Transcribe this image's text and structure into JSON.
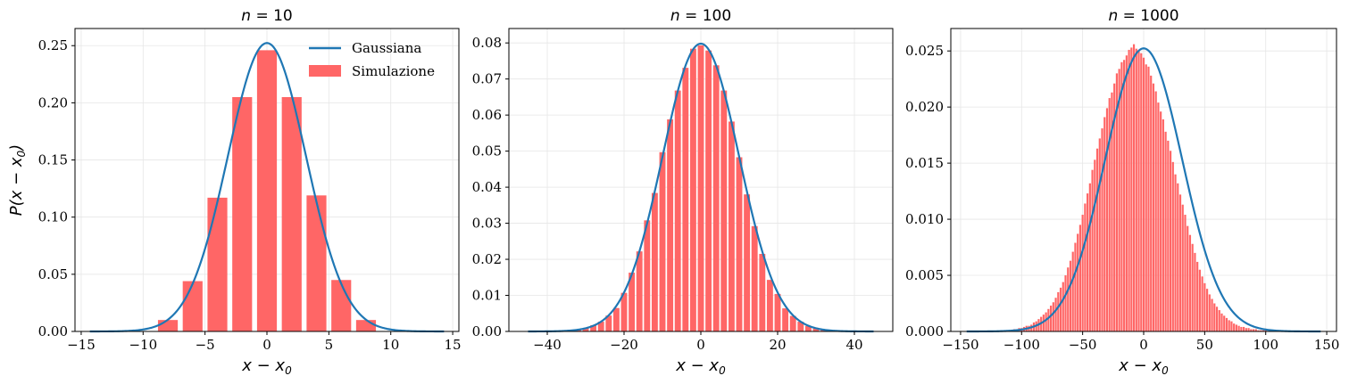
{
  "colors": {
    "bar": "#ff6666",
    "curve": "#1f77b4",
    "grid": "#e6e6e6",
    "axis": "#000000"
  },
  "chart_data": [
    {
      "type": "bar",
      "title": "n = 10",
      "title_parts": {
        "var": "n",
        "rest": " = 10"
      },
      "xlabel": "x − x",
      "xlabel_sub": "0",
      "ylabel": "P(x − x",
      "ylabel_sub": "0",
      "ylabel_close": ")",
      "xlim": [
        -15.5,
        15.5
      ],
      "ylim": [
        0,
        0.265
      ],
      "xticks": [
        -15,
        -10,
        -5,
        0,
        5,
        10,
        15
      ],
      "xtick_labels": [
        "−15",
        "−10",
        "−5",
        "0",
        "5",
        "10",
        "15"
      ],
      "yticks": [
        0,
        0.05,
        0.1,
        0.15,
        0.2,
        0.25
      ],
      "ytick_labels": [
        "0.00",
        "0.05",
        "0.10",
        "0.15",
        "0.20",
        "0.25"
      ],
      "grid": true,
      "bar_width": 1.6,
      "bars": {
        "x": [
          -8,
          -6,
          -4,
          -2,
          0,
          2,
          4,
          6,
          8
        ],
        "values": [
          0.01,
          0.044,
          0.117,
          0.205,
          0.246,
          0.205,
          0.119,
          0.045,
          0.01
        ]
      },
      "curve": {
        "sigma": 3.1623,
        "peak": 0.2523,
        "xmin": -14.3,
        "xmax": 14.3
      },
      "legend": {
        "position": "top-right",
        "items": [
          "Gaussiana",
          "Simulazione"
        ]
      }
    },
    {
      "type": "bar",
      "title": "n = 100",
      "title_parts": {
        "var": "n",
        "rest": " = 100"
      },
      "xlabel": "x − x",
      "xlabel_sub": "0",
      "xlim": [
        -50,
        50
      ],
      "ylim": [
        0,
        0.084
      ],
      "xticks": [
        -40,
        -20,
        0,
        20,
        40
      ],
      "xtick_labels": [
        "−40",
        "−20",
        "0",
        "20",
        "40"
      ],
      "yticks": [
        0,
        0.01,
        0.02,
        0.03,
        0.04,
        0.05,
        0.06,
        0.07,
        0.08
      ],
      "ytick_labels": [
        "0.00",
        "0.01",
        "0.02",
        "0.03",
        "0.04",
        "0.05",
        "0.06",
        "0.07",
        "0.08"
      ],
      "grid": true,
      "bar_width": 1.6,
      "bars": {
        "x": [
          -34,
          -32,
          -30,
          -28,
          -26,
          -24,
          -22,
          -20,
          -18,
          -16,
          -14,
          -12,
          -10,
          -8,
          -6,
          -4,
          -2,
          0,
          2,
          4,
          6,
          8,
          10,
          12,
          14,
          16,
          18,
          20,
          22,
          24,
          26,
          28,
          30,
          32,
          34
        ],
        "values": [
          0.0002,
          0.0004,
          0.0009,
          0.0017,
          0.0027,
          0.0044,
          0.0065,
          0.0107,
          0.0163,
          0.0222,
          0.0308,
          0.0384,
          0.0497,
          0.0588,
          0.0668,
          0.0731,
          0.0784,
          0.0793,
          0.0779,
          0.0738,
          0.0668,
          0.0582,
          0.0483,
          0.038,
          0.0292,
          0.0215,
          0.0143,
          0.0104,
          0.0064,
          0.0043,
          0.0027,
          0.0015,
          0.0008,
          0.0004,
          0.0002
        ]
      },
      "curve": {
        "sigma": 10,
        "peak": 0.0798,
        "xmin": -45,
        "xmax": 45
      }
    },
    {
      "type": "bar",
      "title": "n = 1000",
      "title_parts": {
        "var": "n",
        "rest": " = 1000"
      },
      "xlabel": "x − x",
      "xlabel_sub": "0",
      "xlim": [
        -158,
        158
      ],
      "ylim": [
        0,
        0.027
      ],
      "xticks": [
        -150,
        -100,
        -50,
        0,
        50,
        100,
        150
      ],
      "xtick_labels": [
        "−150",
        "−100",
        "−50",
        "0",
        "50",
        "100",
        "150"
      ],
      "yticks": [
        0,
        0.005,
        0.01,
        0.015,
        0.02,
        0.025
      ],
      "ytick_labels": [
        "0.000",
        "0.005",
        "0.010",
        "0.015",
        "0.020",
        "0.025"
      ],
      "grid": true,
      "bar_width": 1.6,
      "bars": {
        "x_start": -110,
        "x_step": 2,
        "values": [
          0.0001,
          0.0001,
          0.0002,
          0.0002,
          0.0003,
          0.0003,
          0.0004,
          0.0005,
          0.0005,
          0.0006,
          0.0008,
          0.0009,
          0.0011,
          0.0013,
          0.0015,
          0.0017,
          0.002,
          0.0023,
          0.0026,
          0.003,
          0.0035,
          0.0039,
          0.0044,
          0.005,
          0.0057,
          0.0063,
          0.0071,
          0.0079,
          0.0087,
          0.0095,
          0.0104,
          0.0114,
          0.0123,
          0.0132,
          0.0144,
          0.0153,
          0.0163,
          0.0172,
          0.0181,
          0.0191,
          0.0199,
          0.0208,
          0.0213,
          0.0221,
          0.023,
          0.0234,
          0.024,
          0.0242,
          0.0246,
          0.0251,
          0.0253,
          0.0256,
          0.0252,
          0.025,
          0.0248,
          0.0244,
          0.0238,
          0.0236,
          0.0228,
          0.0221,
          0.0214,
          0.0204,
          0.0196,
          0.0189,
          0.0178,
          0.017,
          0.0161,
          0.0151,
          0.014,
          0.0132,
          0.0122,
          0.0113,
          0.0104,
          0.0094,
          0.0086,
          0.0078,
          0.007,
          0.0062,
          0.0055,
          0.0049,
          0.0043,
          0.0038,
          0.0033,
          0.0029,
          0.0025,
          0.0022,
          0.0019,
          0.0016,
          0.0014,
          0.0012,
          0.001,
          0.0009,
          0.0007,
          0.0006,
          0.0005,
          0.0004,
          0.0004,
          0.0003,
          0.0003,
          0.0002,
          0.0002,
          0.0002,
          0.0001,
          0.0001,
          0.0001,
          0.0001
        ]
      },
      "curve": {
        "sigma": 31.623,
        "peak": 0.02523,
        "xmin": -145,
        "xmax": 145
      }
    }
  ]
}
